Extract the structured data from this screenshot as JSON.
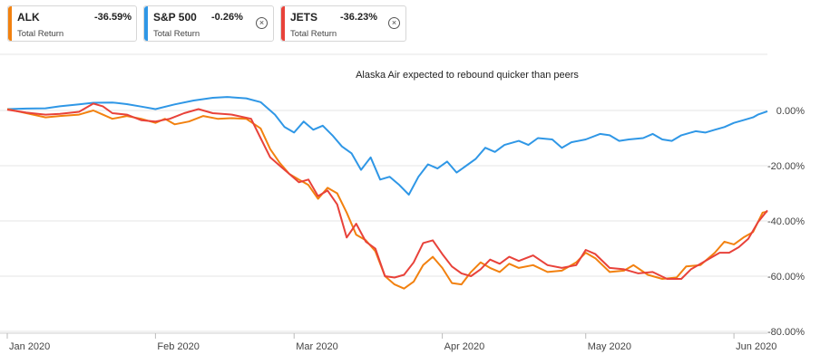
{
  "legend": [
    {
      "ticker": "ALK",
      "value": "-36.59%",
      "sub": "Total Return",
      "color": "#f2810f",
      "closable": false
    },
    {
      "ticker": "S&P 500",
      "value": "-0.26%",
      "sub": "Total Return",
      "color": "#2f97e6",
      "closable": true
    },
    {
      "ticker": "JETS",
      "value": "-36.23%",
      "sub": "Total Return",
      "color": "#e8423a",
      "closable": true
    }
  ],
  "chart_data": {
    "type": "line",
    "title": "Alaska Air expected to rebound quicker than peers",
    "xlabel": "",
    "ylabel": "",
    "ylim": [
      -80,
      10
    ],
    "y_ticks": [
      "0.00%",
      "-20.00%",
      "-40.00%",
      "-60.00%",
      "-80.00%"
    ],
    "y_tick_values": [
      0,
      -20,
      -40,
      -60,
      -80
    ],
    "x_ticks": [
      "Jan 2020",
      "Feb 2020",
      "Mar 2020",
      "Apr 2020",
      "May 2020",
      "Jun 2020"
    ],
    "x_tick_values": [
      0,
      31,
      60,
      91,
      121,
      152
    ],
    "xlim": [
      0,
      159
    ],
    "grid": true,
    "series": [
      {
        "name": "S&P 500",
        "color": "#2f97e6",
        "points": [
          [
            0,
            0.5
          ],
          [
            4,
            0.7
          ],
          [
            8,
            0.8
          ],
          [
            11,
            1.5
          ],
          [
            15,
            2.2
          ],
          [
            18,
            2.8
          ],
          [
            22,
            2.9
          ],
          [
            25,
            2.3
          ],
          [
            28,
            1.4
          ],
          [
            31,
            0.5
          ],
          [
            35,
            2.2
          ],
          [
            39,
            3.6
          ],
          [
            43,
            4.6
          ],
          [
            46,
            4.9
          ],
          [
            50,
            4.4
          ],
          [
            53,
            3.0
          ],
          [
            56,
            -1.5
          ],
          [
            58,
            -6.0
          ],
          [
            60,
            -8.0
          ],
          [
            62,
            -4.0
          ],
          [
            64,
            -7.0
          ],
          [
            66,
            -5.5
          ],
          [
            68,
            -9.0
          ],
          [
            70,
            -13.0
          ],
          [
            72,
            -15.5
          ],
          [
            74,
            -21.5
          ],
          [
            76,
            -17.0
          ],
          [
            78,
            -25.0
          ],
          [
            80,
            -24.0
          ],
          [
            82,
            -27.0
          ],
          [
            84,
            -30.5
          ],
          [
            86,
            -24.0
          ],
          [
            88,
            -19.5
          ],
          [
            90,
            -21.0
          ],
          [
            92,
            -18.5
          ],
          [
            94,
            -22.5
          ],
          [
            96,
            -20.0
          ],
          [
            98,
            -17.5
          ],
          [
            100,
            -13.5
          ],
          [
            102,
            -15.0
          ],
          [
            104,
            -12.5
          ],
          [
            107,
            -11.0
          ],
          [
            109,
            -12.5
          ],
          [
            111,
            -10.0
          ],
          [
            114,
            -10.5
          ],
          [
            116,
            -13.5
          ],
          [
            118,
            -11.5
          ],
          [
            121,
            -10.5
          ],
          [
            124,
            -8.5
          ],
          [
            126,
            -9.0
          ],
          [
            128,
            -11.0
          ],
          [
            130,
            -10.5
          ],
          [
            133,
            -10.0
          ],
          [
            135,
            -8.5
          ],
          [
            137,
            -10.5
          ],
          [
            139,
            -11.0
          ],
          [
            141,
            -9.0
          ],
          [
            144,
            -7.5
          ],
          [
            146,
            -8.0
          ],
          [
            148,
            -7.0
          ],
          [
            150,
            -6.0
          ],
          [
            152,
            -4.5
          ],
          [
            154,
            -3.5
          ],
          [
            156,
            -2.5
          ],
          [
            157,
            -1.5
          ],
          [
            159,
            -0.3
          ]
        ]
      },
      {
        "name": "ALK",
        "color": "#f2810f",
        "points": [
          [
            0,
            0.5
          ],
          [
            4,
            -1.0
          ],
          [
            8,
            -2.5
          ],
          [
            11,
            -2.0
          ],
          [
            15,
            -1.5
          ],
          [
            18,
            0.0
          ],
          [
            20,
            -1.5
          ],
          [
            22,
            -3.0
          ],
          [
            25,
            -2.0
          ],
          [
            28,
            -3.0
          ],
          [
            31,
            -4.5
          ],
          [
            33,
            -3.0
          ],
          [
            35,
            -5.0
          ],
          [
            38,
            -4.0
          ],
          [
            41,
            -2.0
          ],
          [
            44,
            -3.0
          ],
          [
            47,
            -2.8
          ],
          [
            50,
            -3.0
          ],
          [
            53,
            -6.5
          ],
          [
            55,
            -14.0
          ],
          [
            57,
            -19.0
          ],
          [
            59,
            -23.0
          ],
          [
            61,
            -25.0
          ],
          [
            63,
            -27.0
          ],
          [
            65,
            -32.0
          ],
          [
            67,
            -28.0
          ],
          [
            69,
            -30.0
          ],
          [
            71,
            -37.0
          ],
          [
            73,
            -45.0
          ],
          [
            75,
            -47.0
          ],
          [
            77,
            -51.0
          ],
          [
            79,
            -60.0
          ],
          [
            81,
            -63.0
          ],
          [
            83,
            -64.5
          ],
          [
            85,
            -62.0
          ],
          [
            87,
            -56.0
          ],
          [
            89,
            -53.0
          ],
          [
            91,
            -57.0
          ],
          [
            93,
            -62.5
          ],
          [
            95,
            -63.0
          ],
          [
            97,
            -58.5
          ],
          [
            99,
            -55.0
          ],
          [
            101,
            -57.0
          ],
          [
            103,
            -58.5
          ],
          [
            105,
            -55.5
          ],
          [
            107,
            -57.0
          ],
          [
            110,
            -56.0
          ],
          [
            113,
            -58.5
          ],
          [
            116,
            -58.0
          ],
          [
            119,
            -55.0
          ],
          [
            121,
            -51.5
          ],
          [
            123,
            -53.5
          ],
          [
            126,
            -58.5
          ],
          [
            129,
            -58.0
          ],
          [
            131,
            -56.0
          ],
          [
            134,
            -59.5
          ],
          [
            137,
            -61.0
          ],
          [
            140,
            -60.5
          ],
          [
            142,
            -56.5
          ],
          [
            145,
            -56.0
          ],
          [
            148,
            -51.5
          ],
          [
            150,
            -47.5
          ],
          [
            152,
            -48.5
          ],
          [
            154,
            -46.0
          ],
          [
            156,
            -44.0
          ],
          [
            158,
            -37.0
          ],
          [
            159,
            -36.6
          ]
        ]
      },
      {
        "name": "JETS",
        "color": "#e8423a",
        "points": [
          [
            0,
            0.3
          ],
          [
            4,
            -0.8
          ],
          [
            8,
            -1.5
          ],
          [
            11,
            -1.2
          ],
          [
            15,
            -0.5
          ],
          [
            18,
            2.5
          ],
          [
            20,
            1.5
          ],
          [
            22,
            -1.0
          ],
          [
            25,
            -1.5
          ],
          [
            28,
            -3.5
          ],
          [
            31,
            -4.0
          ],
          [
            34,
            -3.0
          ],
          [
            37,
            -1.0
          ],
          [
            40,
            0.5
          ],
          [
            43,
            -1.0
          ],
          [
            47,
            -1.5
          ],
          [
            51,
            -3.0
          ],
          [
            53,
            -10.0
          ],
          [
            55,
            -17.0
          ],
          [
            57,
            -20.0
          ],
          [
            59,
            -23.0
          ],
          [
            61,
            -26.0
          ],
          [
            63,
            -25.0
          ],
          [
            65,
            -31.0
          ],
          [
            67,
            -29.0
          ],
          [
            69,
            -34.0
          ],
          [
            71,
            -46.0
          ],
          [
            73,
            -41.0
          ],
          [
            75,
            -47.5
          ],
          [
            77,
            -50.0
          ],
          [
            79,
            -60.0
          ],
          [
            81,
            -60.5
          ],
          [
            83,
            -59.5
          ],
          [
            85,
            -55.0
          ],
          [
            87,
            -48.0
          ],
          [
            89,
            -47.0
          ],
          [
            91,
            -52.0
          ],
          [
            93,
            -56.5
          ],
          [
            95,
            -59.0
          ],
          [
            97,
            -60.0
          ],
          [
            99,
            -57.5
          ],
          [
            101,
            -54.0
          ],
          [
            103,
            -55.5
          ],
          [
            105,
            -53.0
          ],
          [
            107,
            -54.5
          ],
          [
            110,
            -52.5
          ],
          [
            113,
            -56.0
          ],
          [
            116,
            -57.0
          ],
          [
            119,
            -56.0
          ],
          [
            121,
            -50.5
          ],
          [
            123,
            -52.0
          ],
          [
            126,
            -57.0
          ],
          [
            129,
            -57.5
          ],
          [
            132,
            -59.0
          ],
          [
            135,
            -58.5
          ],
          [
            138,
            -61.0
          ],
          [
            141,
            -61.0
          ],
          [
            143,
            -57.5
          ],
          [
            146,
            -54.5
          ],
          [
            149,
            -51.5
          ],
          [
            151,
            -51.5
          ],
          [
            153,
            -49.5
          ],
          [
            155,
            -46.5
          ],
          [
            157,
            -40.5
          ],
          [
            159,
            -36.2
          ]
        ]
      }
    ]
  }
}
